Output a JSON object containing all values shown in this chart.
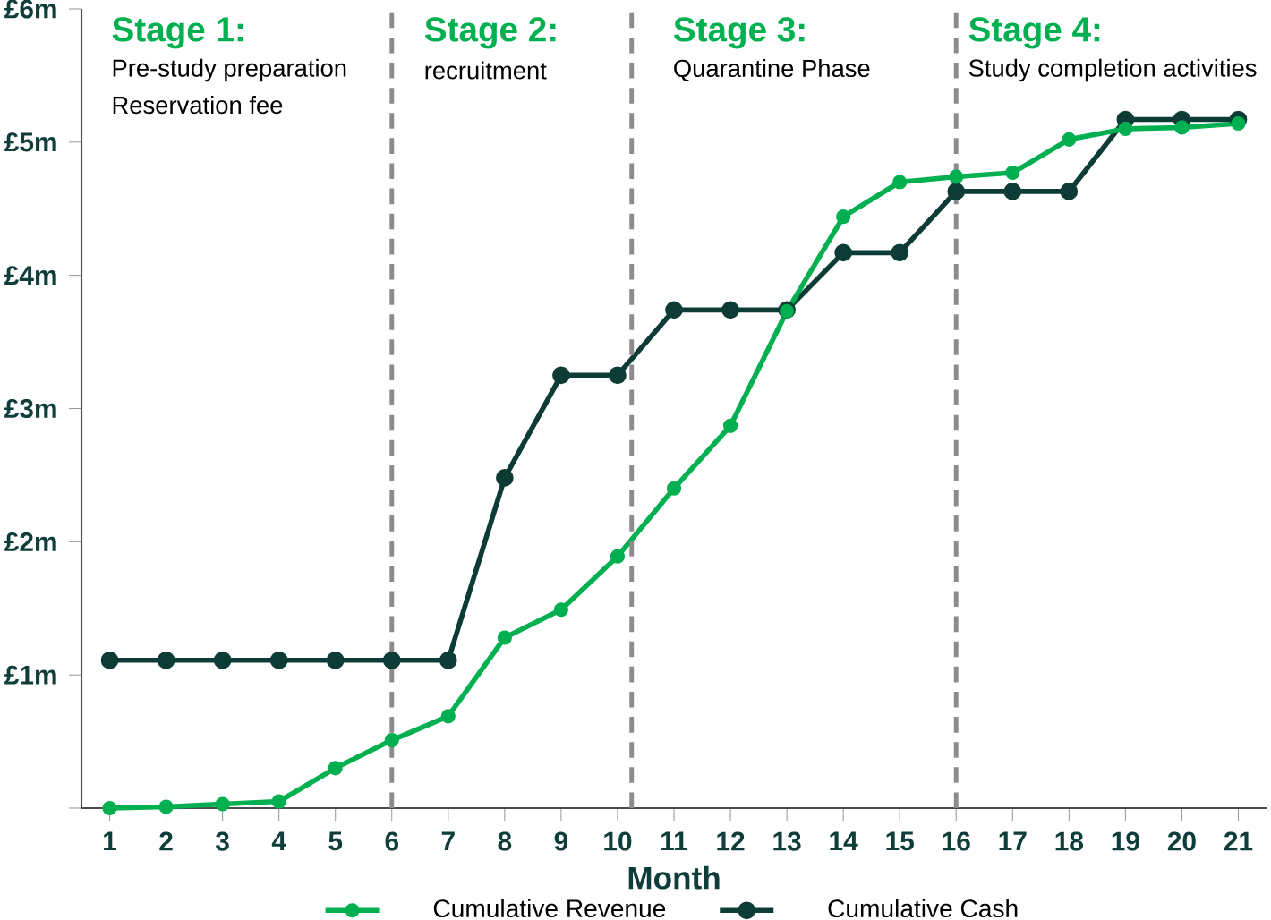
{
  "chart_data": {
    "type": "line",
    "xlabel": "Month",
    "x": [
      1,
      2,
      3,
      4,
      5,
      6,
      7,
      8,
      9,
      10,
      11,
      12,
      13,
      14,
      15,
      16,
      17,
      18,
      19,
      20,
      21
    ],
    "xlim": [
      0.5,
      21.5
    ],
    "xticks": [
      1,
      2,
      3,
      4,
      5,
      6,
      7,
      8,
      9,
      10,
      11,
      12,
      13,
      14,
      15,
      16,
      17,
      18,
      19,
      20,
      21
    ],
    "ylim": [
      0,
      6
    ],
    "yticks": [
      {
        "value": 0,
        "label": null
      },
      {
        "value": 1,
        "label": "£1m"
      },
      {
        "value": 2,
        "label": "£2m"
      },
      {
        "value": 3,
        "label": "£3m"
      },
      {
        "value": 4,
        "label": "£4m"
      },
      {
        "value": 5,
        "label": "£5m"
      },
      {
        "value": 6,
        "label": "£6m"
      }
    ],
    "series": [
      {
        "name": "Cumulative Revenue",
        "color": "#00b050",
        "values": [
          0,
          0.01,
          0.03,
          0.05,
          0.3,
          0.51,
          0.69,
          1.28,
          1.49,
          1.89,
          2.4,
          2.87,
          3.73,
          4.44,
          4.7,
          4.74,
          4.77,
          5.02,
          5.1,
          5.11,
          5.14
        ]
      },
      {
        "name": "Cumulative Cash",
        "color": "#0d3b36",
        "values": [
          1.11,
          1.11,
          1.11,
          1.11,
          1.11,
          1.11,
          1.11,
          2.48,
          3.25,
          3.25,
          3.74,
          3.74,
          3.74,
          4.17,
          4.17,
          4.63,
          4.63,
          4.63,
          5.17,
          5.17,
          5.17
        ]
      }
    ],
    "ref_lines": [
      {
        "axis": "x",
        "value": 6,
        "color": "#8c8c8c",
        "line_style": "dashed"
      },
      {
        "axis": "x",
        "value": 10.25,
        "color": "#8c8c8c",
        "line_style": "dashed"
      },
      {
        "axis": "x",
        "value": 16,
        "color": "#8c8c8c",
        "line_style": "dashed"
      }
    ],
    "annotations": [
      "Stage 1:",
      "Pre-study preparation",
      "Reservation fee",
      "Stage 2:",
      "recruitment",
      "Stage 3:",
      "Quarantine Phase",
      "Stage 4:",
      "Study completion activities"
    ],
    "marker": "circle",
    "line_style": "solid",
    "grid": false,
    "legend": "bottom"
  }
}
